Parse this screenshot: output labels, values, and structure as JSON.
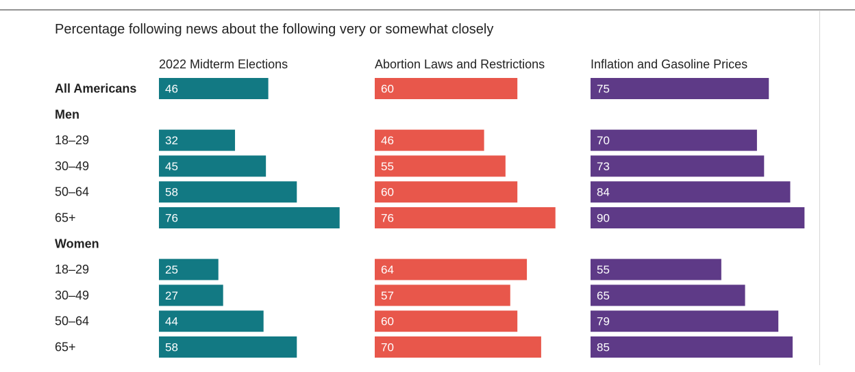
{
  "title": "Percentage following news about the following very or somewhat closely",
  "colors": {
    "series": [
      "#127983",
      "#e8574b",
      "#5e3a87"
    ],
    "text": "#222222",
    "value_text": "#ffffff"
  },
  "chart_data": {
    "type": "bar",
    "orientation": "horizontal",
    "title": "Percentage following news about the following very or somewhat closely",
    "xlim": [
      0,
      100
    ],
    "grid": false,
    "legend": "none",
    "rows": [
      {
        "label": "All Americans",
        "bold": true,
        "header": false
      },
      {
        "label": "Men",
        "bold": true,
        "header": true
      },
      {
        "label": "18–29",
        "bold": false,
        "header": false
      },
      {
        "label": "30–49",
        "bold": false,
        "header": false
      },
      {
        "label": "50–64",
        "bold": false,
        "header": false
      },
      {
        "label": "65+",
        "bold": false,
        "header": false
      },
      {
        "label": "Women",
        "bold": true,
        "header": true
      },
      {
        "label": "18–29",
        "bold": false,
        "header": false
      },
      {
        "label": "30–49",
        "bold": false,
        "header": false
      },
      {
        "label": "50–64",
        "bold": false,
        "header": false
      },
      {
        "label": "65+",
        "bold": false,
        "header": false
      }
    ],
    "series": [
      {
        "name": "2022 Midterm Elections",
        "color": "#127983",
        "values": [
          46,
          null,
          32,
          45,
          58,
          76,
          null,
          25,
          27,
          44,
          58
        ]
      },
      {
        "name": "Abortion Laws and Restrictions",
        "color": "#e8574b",
        "values": [
          60,
          null,
          46,
          55,
          60,
          76,
          null,
          64,
          57,
          60,
          70
        ]
      },
      {
        "name": "Inflation and Gasoline Prices",
        "color": "#5e3a87",
        "values": [
          75,
          null,
          70,
          73,
          84,
          90,
          null,
          55,
          65,
          79,
          85
        ]
      }
    ]
  }
}
